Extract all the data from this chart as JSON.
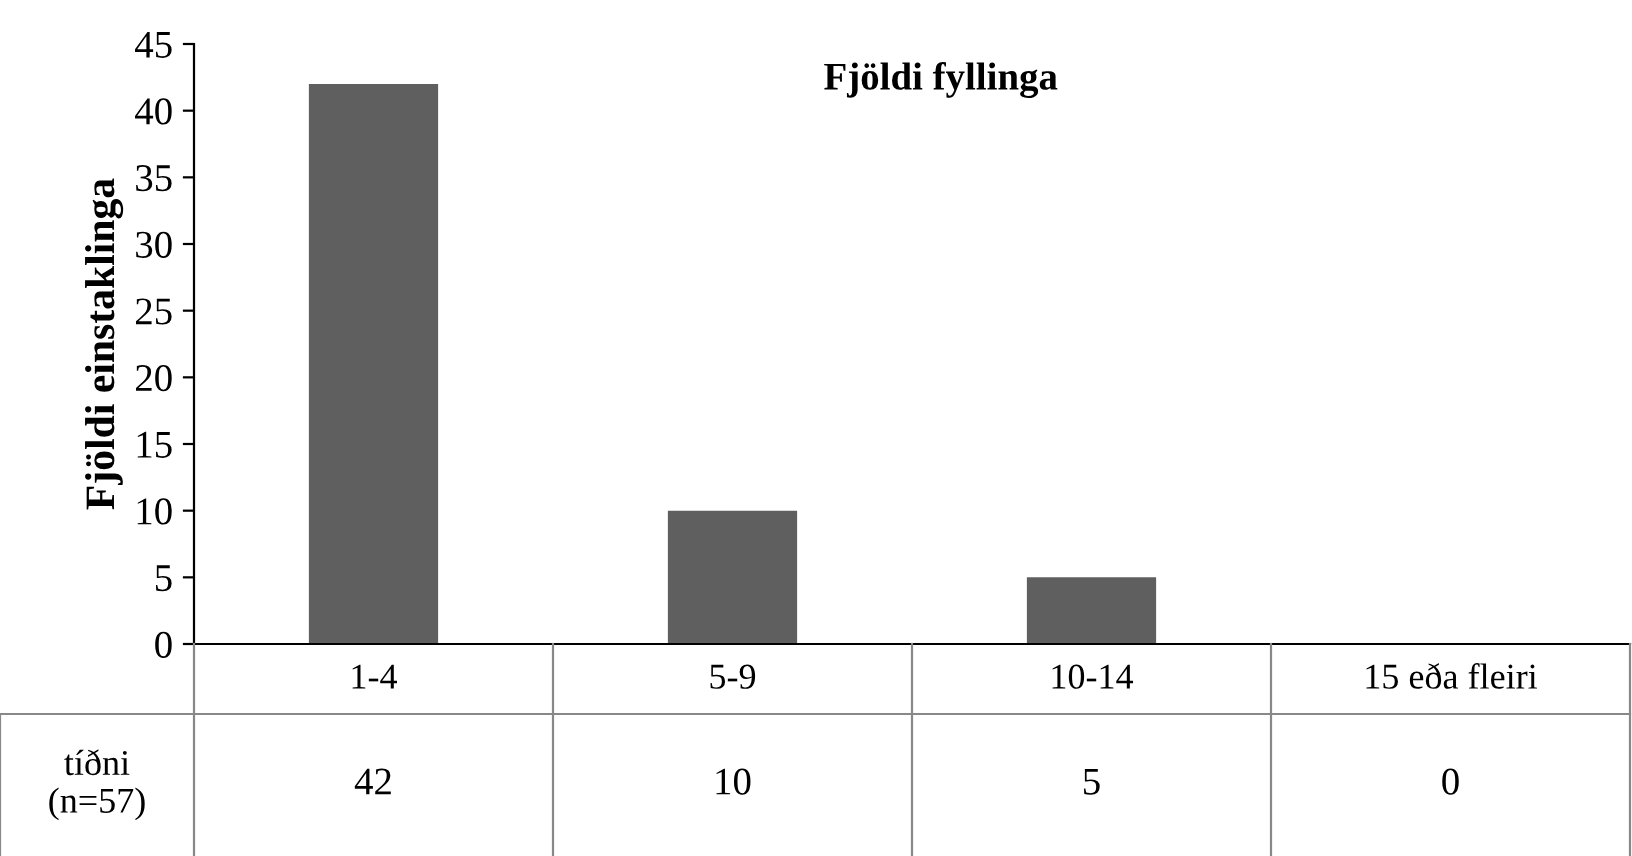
{
  "chart_data": {
    "type": "bar",
    "title": "Fjöldi fyllinga",
    "ylabel": "Fjöldi einstaklinga",
    "categories": [
      "1-4",
      "5-9",
      "10-14",
      "15 eða fleiri"
    ],
    "values": [
      42,
      10,
      5,
      0
    ],
    "color": "#5f5f5f",
    "ylim": [
      0,
      45
    ],
    "yticks": [
      0,
      5,
      10,
      15,
      20,
      25,
      30,
      35,
      40,
      45
    ],
    "grid": false,
    "data_labels": true,
    "annotations": [
      "tíðni\n(n=57)"
    ]
  }
}
